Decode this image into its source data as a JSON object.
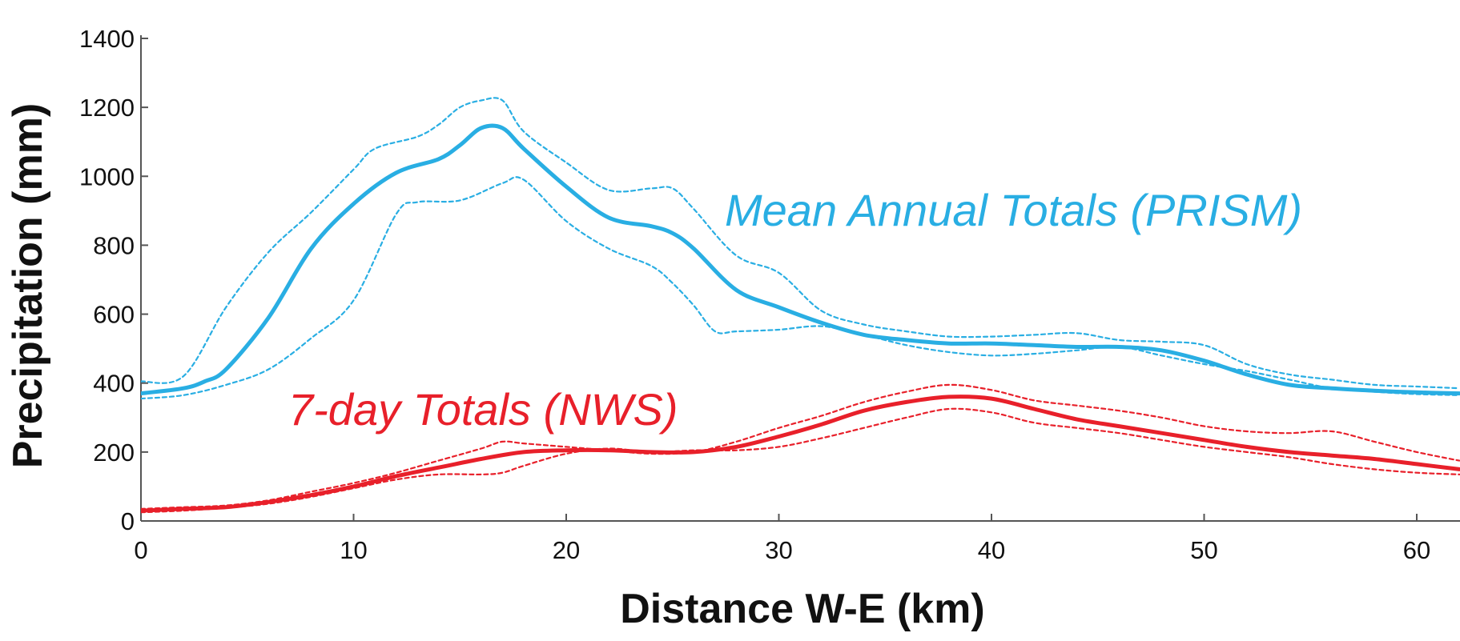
{
  "chart_data": {
    "type": "line",
    "title": "",
    "xlabel": "Distance W-E (km)",
    "ylabel": "Precipitation (mm)",
    "xlim": [
      0,
      62
    ],
    "ylim": [
      0,
      1400
    ],
    "xticks": [
      0,
      10,
      20,
      30,
      40,
      50,
      60
    ],
    "yticks": [
      0,
      200,
      400,
      600,
      800,
      1000,
      1200,
      1400
    ],
    "grid": false,
    "legend": "none",
    "annotations": [
      {
        "text": "Mean Annual Totals (PRISM)",
        "series": "prism",
        "color": "#29aee3"
      },
      {
        "text": "7-day Totals (NWS)",
        "series": "nws",
        "color": "#e8202a"
      }
    ],
    "series": [
      {
        "id": "prism-mean",
        "group": "prism",
        "style": "solid",
        "color": "#29aee3",
        "x": [
          0,
          2,
          3,
          4,
          6,
          8,
          10,
          12,
          14,
          15,
          16,
          17,
          18,
          20,
          22,
          24,
          25,
          26,
          28,
          30,
          32,
          34,
          36,
          38,
          40,
          42,
          44,
          46,
          48,
          50,
          52,
          54,
          56,
          58,
          60,
          62
        ],
        "y": [
          370,
          385,
          405,
          440,
          590,
          790,
          920,
          1010,
          1050,
          1090,
          1140,
          1140,
          1080,
          970,
          880,
          855,
          835,
          790,
          670,
          620,
          575,
          540,
          525,
          515,
          515,
          510,
          505,
          505,
          495,
          465,
          425,
          395,
          385,
          378,
          373,
          370
        ]
      },
      {
        "id": "prism-upper",
        "group": "prism",
        "style": "dashed",
        "color": "#29aee3",
        "x": [
          0,
          2,
          4,
          6,
          8,
          10,
          11,
          13,
          14,
          15,
          16,
          17,
          18,
          20,
          22,
          24,
          25,
          26,
          28,
          30,
          32,
          34,
          36,
          38,
          40,
          42,
          44,
          46,
          48,
          50,
          52,
          54,
          56,
          58,
          60,
          62
        ],
        "y": [
          405,
          420,
          620,
          780,
          895,
          1020,
          1080,
          1115,
          1150,
          1200,
          1220,
          1220,
          1130,
          1040,
          960,
          965,
          965,
          905,
          770,
          720,
          610,
          570,
          550,
          535,
          535,
          540,
          545,
          525,
          520,
          510,
          455,
          425,
          410,
          395,
          390,
          385
        ]
      },
      {
        "id": "prism-lower",
        "group": "prism",
        "style": "dashed",
        "color": "#29aee3",
        "x": [
          0,
          2,
          4,
          6,
          8,
          10,
          12,
          13,
          15,
          17,
          18,
          20,
          22,
          24,
          25,
          26,
          27,
          28,
          30,
          32,
          34,
          36,
          38,
          40,
          42,
          44,
          46,
          48,
          50,
          52,
          54,
          56,
          58,
          60,
          62
        ],
        "y": [
          355,
          365,
          395,
          440,
          530,
          640,
          890,
          925,
          930,
          980,
          990,
          870,
          790,
          740,
          690,
          625,
          550,
          550,
          555,
          565,
          540,
          510,
          490,
          480,
          485,
          495,
          505,
          480,
          455,
          435,
          410,
          385,
          375,
          368,
          365
        ]
      },
      {
        "id": "nws-mean",
        "group": "nws",
        "style": "solid",
        "color": "#e8202a",
        "x": [
          0,
          2,
          4,
          6,
          8,
          10,
          12,
          14,
          16,
          18,
          20,
          22,
          24,
          26,
          28,
          30,
          32,
          34,
          36,
          38,
          40,
          42,
          44,
          46,
          48,
          50,
          52,
          54,
          56,
          58,
          60,
          62
        ],
        "y": [
          30,
          35,
          40,
          55,
          75,
          100,
          130,
          155,
          180,
          200,
          205,
          205,
          200,
          200,
          215,
          245,
          280,
          320,
          345,
          360,
          355,
          325,
          295,
          275,
          255,
          235,
          215,
          200,
          190,
          180,
          165,
          150
        ]
      },
      {
        "id": "nws-upper",
        "group": "nws",
        "style": "dashed",
        "color": "#e8202a",
        "x": [
          0,
          2,
          4,
          6,
          8,
          10,
          12,
          14,
          16,
          17,
          18,
          20,
          22,
          24,
          26,
          28,
          30,
          32,
          34,
          36,
          38,
          40,
          42,
          44,
          46,
          48,
          50,
          52,
          54,
          56,
          58,
          60,
          62
        ],
        "y": [
          35,
          40,
          45,
          60,
          85,
          110,
          140,
          175,
          210,
          230,
          225,
          215,
          205,
          195,
          200,
          230,
          270,
          305,
          345,
          375,
          395,
          380,
          350,
          335,
          320,
          300,
          275,
          260,
          255,
          260,
          230,
          200,
          175
        ]
      },
      {
        "id": "nws-lower",
        "group": "nws",
        "style": "dashed",
        "color": "#e8202a",
        "x": [
          0,
          2,
          4,
          6,
          8,
          10,
          12,
          14,
          16,
          17,
          18,
          20,
          22,
          24,
          26,
          28,
          30,
          32,
          34,
          36,
          38,
          40,
          42,
          44,
          46,
          48,
          50,
          52,
          54,
          56,
          58,
          60,
          62
        ],
        "y": [
          25,
          30,
          38,
          50,
          70,
          95,
          120,
          135,
          135,
          140,
          160,
          195,
          210,
          200,
          205,
          205,
          215,
          240,
          270,
          300,
          325,
          315,
          285,
          270,
          255,
          235,
          215,
          200,
          185,
          165,
          150,
          140,
          135
        ]
      }
    ]
  }
}
